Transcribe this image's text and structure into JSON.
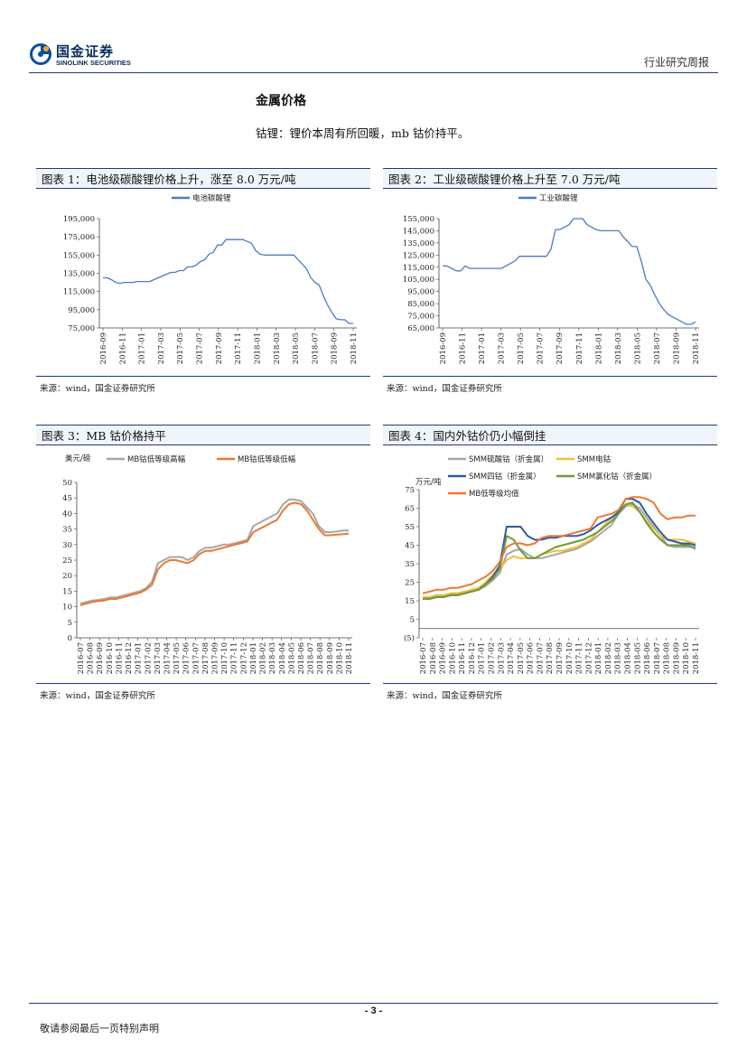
{
  "header": {
    "logo_cn": "国金证券",
    "logo_en": "SINOLINK SECURITIES",
    "report_type": "行业研究周报"
  },
  "section": {
    "title": "金属价格",
    "intro": "钴锂：锂价本周有所回暖，mb 钴价持平。"
  },
  "source_text": "来源：wind，国金证券研究所",
  "footer": {
    "page": "- 3 -",
    "disclaimer": "敬请参阅最后一页特别声明"
  },
  "colors": {
    "blue": "#4a7bbf",
    "gray": "#a6a6a6",
    "orange": "#e87a34",
    "yellow": "#f2c12e",
    "dark_blue": "#2f5aa8",
    "green": "#6d9a3c",
    "rule": "#1f3c78"
  },
  "chart_data": [
    {
      "type": "line",
      "caption": "图表 1：电池级碳酸锂价格上升，涨至 8.0 万元/吨",
      "series": [
        {
          "name": "电池碳酸锂",
          "color": "#4a7bbf",
          "values": [
            130000,
            130000,
            128000,
            125000,
            124000,
            125000,
            125000,
            125000,
            126000,
            126000,
            126000,
            126000,
            128000,
            130000,
            132000,
            134000,
            136000,
            136000,
            138000,
            138000,
            142000,
            142000,
            144000,
            148000,
            150000,
            156000,
            158000,
            166000,
            166000,
            172000,
            172000,
            172000,
            172000,
            172000,
            170000,
            168000,
            160000,
            156000,
            155000,
            155000,
            155000,
            155000,
            155000,
            155000,
            155000,
            155000,
            150000,
            145000,
            140000,
            130000,
            125000,
            122000,
            110000,
            100000,
            92000,
            85000,
            84000,
            84000,
            80000,
            80000
          ]
        }
      ],
      "x_ticks": [
        "2016-09",
        "2016-11",
        "2017-01",
        "2017-03",
        "2017-05",
        "2017-07",
        "2017-09",
        "2017-11",
        "2018-01",
        "2018-03",
        "2018-05",
        "2018-07",
        "2018-09",
        "2018-11"
      ],
      "y_ticks": [
        "195,000",
        "175,000",
        "155,000",
        "135,000",
        "115,000",
        "95,000",
        "75,000"
      ],
      "ylim": [
        75000,
        195000
      ]
    },
    {
      "type": "line",
      "caption": "图表 2：工业级碳酸锂价格上升至 7.0 万元/吨",
      "series": [
        {
          "name": "工业碳酸锂",
          "color": "#4a7bbf",
          "values": [
            116000,
            116000,
            114000,
            112000,
            112000,
            116000,
            114000,
            114000,
            114000,
            114000,
            114000,
            114000,
            114000,
            114000,
            116000,
            118000,
            120000,
            124000,
            124000,
            124000,
            124000,
            124000,
            124000,
            124000,
            130000,
            146000,
            146000,
            148000,
            150000,
            155000,
            155000,
            155000,
            150000,
            148000,
            146000,
            145000,
            145000,
            145000,
            145000,
            145000,
            140000,
            136000,
            132000,
            132000,
            120000,
            105000,
            100000,
            92000,
            85000,
            80000,
            76000,
            74000,
            72000,
            70000,
            68000,
            68000,
            70000
          ]
        }
      ],
      "x_ticks": [
        "2016-09",
        "2016-11",
        "2017-01",
        "2017-03",
        "2017-05",
        "2017-07",
        "2017-09",
        "2017-11",
        "2018-01",
        "2018-03",
        "2018-05",
        "2018-07",
        "2018-09",
        "2018-11"
      ],
      "y_ticks": [
        "155,000",
        "145,000",
        "135,000",
        "125,000",
        "115,000",
        "105,000",
        "95,000",
        "85,000",
        "75,000",
        "65,000"
      ],
      "ylim": [
        65000,
        155000
      ]
    },
    {
      "type": "line",
      "caption": "图表 3：MB 钴价格持平",
      "ylabel": "美元/磅",
      "series": [
        {
          "name": "MB钴低等级高幅",
          "color": "#a6a6a6",
          "values": [
            11,
            11.5,
            12,
            12.2,
            12.5,
            13,
            13,
            13.5,
            14,
            14.5,
            15,
            16,
            18,
            24,
            25,
            26,
            26,
            26,
            25,
            26,
            28,
            29,
            29,
            29.5,
            30,
            30,
            30.5,
            31,
            31.5,
            36,
            37,
            38,
            39,
            40,
            43,
            44.5,
            44.5,
            44,
            42,
            40,
            36,
            34,
            34,
            34.2,
            34.5,
            34.5
          ]
        },
        {
          "name": "MB钴低等级低幅",
          "color": "#e87a34",
          "values": [
            10.5,
            11,
            11.5,
            11.8,
            12,
            12.5,
            12.5,
            13,
            13.5,
            14,
            14.5,
            15.5,
            17,
            22,
            24,
            25,
            25,
            24.5,
            24,
            25,
            27,
            28,
            28,
            28.5,
            29,
            29.5,
            30,
            30.5,
            31,
            34,
            35,
            36,
            37,
            38,
            41,
            43,
            43.5,
            43,
            41,
            38,
            35,
            33,
            33,
            33.2,
            33.3,
            33.5
          ]
        }
      ],
      "x_ticks": [
        "2016-07",
        "2016-08",
        "2016-09",
        "2016-10",
        "2016-11",
        "2016-12",
        "2017-01",
        "2017-02",
        "2017-03",
        "2017-04",
        "2017-05",
        "2017-06",
        "2017-07",
        "2017-08",
        "2017-09",
        "2017-10",
        "2017-11",
        "2017-12",
        "2018-01",
        "2018-02",
        "2018-03",
        "2018-04",
        "2018-05",
        "2018-06",
        "2018-07",
        "2018-08",
        "2018-09",
        "2018-10",
        "2018-11"
      ],
      "y_ticks": [
        "50",
        "45",
        "40",
        "35",
        "30",
        "25",
        "20",
        "15",
        "10",
        "5",
        "0"
      ],
      "ylim": [
        0,
        50
      ]
    },
    {
      "type": "line",
      "caption": "图表 4：国内外钴价仍小幅倒挂",
      "ylabel": "万元/吨",
      "series": [
        {
          "name": "SMM硫酸钴（折金属）",
          "color": "#a6a6a6",
          "values": [
            16,
            17,
            18,
            18,
            19,
            19,
            20,
            20,
            21,
            23,
            26,
            30,
            40,
            42,
            43,
            40,
            38,
            38,
            39,
            40,
            41,
            42,
            43,
            45,
            47,
            50,
            53,
            56,
            62,
            66,
            67,
            65,
            60,
            55,
            50,
            45,
            44,
            44,
            44,
            44
          ]
        },
        {
          "name": "SMM电钴",
          "color": "#f2c12e",
          "values": [
            17,
            17,
            18,
            18,
            19,
            19,
            20,
            21,
            22,
            25,
            29,
            32,
            37,
            39,
            38,
            38,
            38,
            40,
            41,
            42,
            42,
            43,
            44,
            46,
            48,
            52,
            56,
            60,
            63,
            67,
            66,
            63,
            58,
            54,
            50,
            48,
            48,
            48,
            47,
            46
          ]
        },
        {
          "name": "SMM四钴（折金属）",
          "color": "#2f5aa8",
          "values": [
            16,
            16,
            17,
            17,
            18,
            18,
            19,
            20,
            21,
            24,
            28,
            34,
            55,
            55,
            55,
            50,
            48,
            48,
            49,
            49,
            50,
            50,
            50,
            51,
            53,
            56,
            58,
            60,
            63,
            70,
            70,
            68,
            62,
            57,
            52,
            48,
            47,
            46,
            46,
            45
          ]
        },
        {
          "name": "SMM氯化钴（折金属）",
          "color": "#6d9a3c",
          "values": [
            16,
            16,
            17,
            17,
            18,
            18,
            19,
            20,
            21,
            24,
            27,
            32,
            50,
            48,
            42,
            38,
            38,
            40,
            42,
            44,
            45,
            46,
            47,
            48,
            50,
            52,
            55,
            58,
            62,
            67,
            68,
            63,
            57,
            52,
            48,
            45,
            45,
            45,
            45,
            43
          ]
        },
        {
          "name": "MB低等级均值",
          "color": "#e87a34",
          "values": [
            19,
            20,
            21,
            21,
            22,
            22,
            23,
            24,
            26,
            28,
            31,
            36,
            44,
            46,
            46,
            45,
            46,
            49,
            50,
            50,
            50,
            51,
            52,
            53,
            54,
            60,
            61,
            62,
            64,
            70,
            71,
            71,
            70,
            68,
            62,
            59,
            60,
            60,
            61,
            61
          ]
        }
      ],
      "x_ticks": [
        "2016-07",
        "2016-08",
        "2016-09",
        "2016-10",
        "2016-11",
        "2016-12",
        "2017-01",
        "2017-02",
        "2017-03",
        "2017-04",
        "2017-05",
        "2017-06",
        "2017-07",
        "2017-08",
        "2017-09",
        "2017-10",
        "2017-11",
        "2017-12",
        "2018-01",
        "2018-02",
        "2018-03",
        "2018-04",
        "2018-05",
        "2018-06",
        "2018-07",
        "2018-08",
        "2018-09",
        "2018-10",
        "2018-11"
      ],
      "y_ticks": [
        "75",
        "65",
        "55",
        "45",
        "35",
        "25",
        "15",
        "5",
        "(5)"
      ],
      "ylim": [
        -5,
        75
      ]
    }
  ]
}
